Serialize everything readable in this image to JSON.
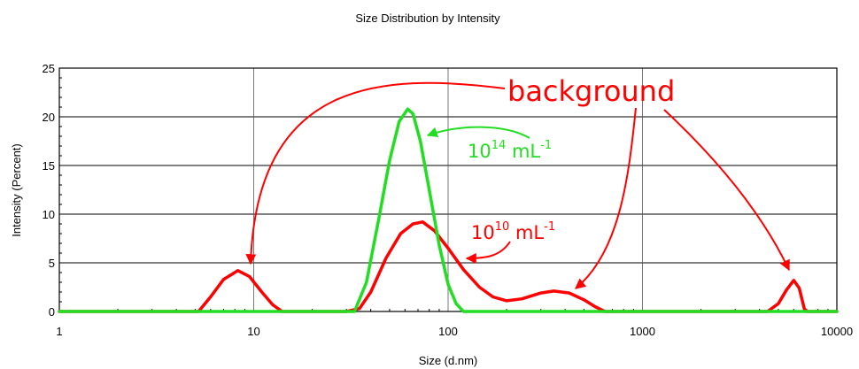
{
  "chart_data": {
    "type": "line",
    "title": "Size Distribution by Intensity",
    "xlabel": "Size (d.nm)",
    "ylabel": "Intensity (Percent)",
    "x_scale": "log",
    "xlim": [
      1,
      10000
    ],
    "ylim": [
      0,
      25
    ],
    "x_ticks": [
      1,
      10,
      100,
      1000,
      10000
    ],
    "x_tick_labels": [
      "1",
      "10",
      "100",
      "1000",
      "10000"
    ],
    "y_ticks": [
      0,
      5,
      10,
      15,
      20,
      25
    ],
    "y_tick_labels": [
      "0",
      "5",
      "10",
      "15",
      "20",
      "25"
    ],
    "grid": true,
    "series": [
      {
        "name": "10^10 mL^-1",
        "color": "#ff0000",
        "points": [
          [
            1,
            0
          ],
          [
            5.2,
            0
          ],
          [
            6,
            1.5
          ],
          [
            7,
            3.3
          ],
          [
            8.3,
            4.2
          ],
          [
            9.5,
            3.6
          ],
          [
            11,
            2.0
          ],
          [
            12.5,
            0.7
          ],
          [
            14,
            0
          ],
          [
            30,
            0
          ],
          [
            35,
            0.3
          ],
          [
            40,
            2.0
          ],
          [
            48,
            5.5
          ],
          [
            57,
            8.0
          ],
          [
            66,
            9.0
          ],
          [
            74,
            9.2
          ],
          [
            85,
            8.3
          ],
          [
            100,
            6.5
          ],
          [
            120,
            4.3
          ],
          [
            145,
            2.5
          ],
          [
            170,
            1.5
          ],
          [
            200,
            1.1
          ],
          [
            240,
            1.3
          ],
          [
            300,
            1.9
          ],
          [
            350,
            2.1
          ],
          [
            420,
            1.9
          ],
          [
            500,
            1.2
          ],
          [
            570,
            0.5
          ],
          [
            640,
            0
          ],
          [
            4400,
            0
          ],
          [
            5000,
            0.8
          ],
          [
            5500,
            2.2
          ],
          [
            6000,
            3.2
          ],
          [
            6400,
            2.4
          ],
          [
            6800,
            0.3
          ],
          [
            7000,
            0
          ],
          [
            10000,
            0
          ]
        ]
      },
      {
        "name": "10^14 mL^-1",
        "color": "#22dd22",
        "points": [
          [
            1,
            0
          ],
          [
            33,
            0
          ],
          [
            38,
            3.0
          ],
          [
            44,
            9.5
          ],
          [
            50,
            15.5
          ],
          [
            56,
            19.5
          ],
          [
            62,
            20.8
          ],
          [
            66,
            20.3
          ],
          [
            72,
            17.5
          ],
          [
            80,
            12.5
          ],
          [
            90,
            6.8
          ],
          [
            100,
            2.8
          ],
          [
            110,
            0.8
          ],
          [
            120,
            0
          ],
          [
            10000,
            0
          ]
        ]
      }
    ],
    "annotations": {
      "background_label": "background",
      "green_series_label": {
        "base": "10",
        "exp": "14",
        "unit": " mL",
        "unit_exp": "-1"
      },
      "red_series_label": {
        "base": "10",
        "exp": "10",
        "unit": " mL",
        "unit_exp": "-1"
      }
    }
  }
}
